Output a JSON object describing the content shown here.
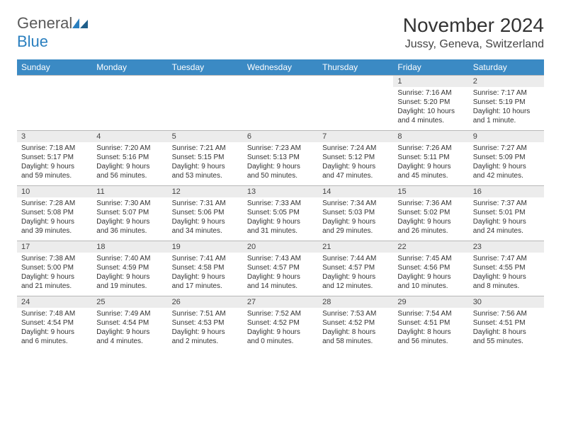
{
  "logo": {
    "word1": "General",
    "word2": "Blue"
  },
  "title": "November 2024",
  "location": "Jussy, Geneva, Switzerland",
  "colors": {
    "header_bg": "#3b8ac4",
    "header_text": "#ffffff",
    "daynum_bg": "#ececec",
    "cell_border": "#b8b8b8",
    "body_text": "#333333",
    "logo_gray": "#5a5a5a",
    "logo_blue": "#2a7fbf"
  },
  "weekdays": [
    "Sunday",
    "Monday",
    "Tuesday",
    "Wednesday",
    "Thursday",
    "Friday",
    "Saturday"
  ],
  "weeks": [
    [
      {
        "empty": true
      },
      {
        "empty": true
      },
      {
        "empty": true
      },
      {
        "empty": true
      },
      {
        "empty": true
      },
      {
        "day": "1",
        "sunrise": "Sunrise: 7:16 AM",
        "sunset": "Sunset: 5:20 PM",
        "daylight": "Daylight: 10 hours and 4 minutes."
      },
      {
        "day": "2",
        "sunrise": "Sunrise: 7:17 AM",
        "sunset": "Sunset: 5:19 PM",
        "daylight": "Daylight: 10 hours and 1 minute."
      }
    ],
    [
      {
        "day": "3",
        "sunrise": "Sunrise: 7:18 AM",
        "sunset": "Sunset: 5:17 PM",
        "daylight": "Daylight: 9 hours and 59 minutes."
      },
      {
        "day": "4",
        "sunrise": "Sunrise: 7:20 AM",
        "sunset": "Sunset: 5:16 PM",
        "daylight": "Daylight: 9 hours and 56 minutes."
      },
      {
        "day": "5",
        "sunrise": "Sunrise: 7:21 AM",
        "sunset": "Sunset: 5:15 PM",
        "daylight": "Daylight: 9 hours and 53 minutes."
      },
      {
        "day": "6",
        "sunrise": "Sunrise: 7:23 AM",
        "sunset": "Sunset: 5:13 PM",
        "daylight": "Daylight: 9 hours and 50 minutes."
      },
      {
        "day": "7",
        "sunrise": "Sunrise: 7:24 AM",
        "sunset": "Sunset: 5:12 PM",
        "daylight": "Daylight: 9 hours and 47 minutes."
      },
      {
        "day": "8",
        "sunrise": "Sunrise: 7:26 AM",
        "sunset": "Sunset: 5:11 PM",
        "daylight": "Daylight: 9 hours and 45 minutes."
      },
      {
        "day": "9",
        "sunrise": "Sunrise: 7:27 AM",
        "sunset": "Sunset: 5:09 PM",
        "daylight": "Daylight: 9 hours and 42 minutes."
      }
    ],
    [
      {
        "day": "10",
        "sunrise": "Sunrise: 7:28 AM",
        "sunset": "Sunset: 5:08 PM",
        "daylight": "Daylight: 9 hours and 39 minutes."
      },
      {
        "day": "11",
        "sunrise": "Sunrise: 7:30 AM",
        "sunset": "Sunset: 5:07 PM",
        "daylight": "Daylight: 9 hours and 36 minutes."
      },
      {
        "day": "12",
        "sunrise": "Sunrise: 7:31 AM",
        "sunset": "Sunset: 5:06 PM",
        "daylight": "Daylight: 9 hours and 34 minutes."
      },
      {
        "day": "13",
        "sunrise": "Sunrise: 7:33 AM",
        "sunset": "Sunset: 5:05 PM",
        "daylight": "Daylight: 9 hours and 31 minutes."
      },
      {
        "day": "14",
        "sunrise": "Sunrise: 7:34 AM",
        "sunset": "Sunset: 5:03 PM",
        "daylight": "Daylight: 9 hours and 29 minutes."
      },
      {
        "day": "15",
        "sunrise": "Sunrise: 7:36 AM",
        "sunset": "Sunset: 5:02 PM",
        "daylight": "Daylight: 9 hours and 26 minutes."
      },
      {
        "day": "16",
        "sunrise": "Sunrise: 7:37 AM",
        "sunset": "Sunset: 5:01 PM",
        "daylight": "Daylight: 9 hours and 24 minutes."
      }
    ],
    [
      {
        "day": "17",
        "sunrise": "Sunrise: 7:38 AM",
        "sunset": "Sunset: 5:00 PM",
        "daylight": "Daylight: 9 hours and 21 minutes."
      },
      {
        "day": "18",
        "sunrise": "Sunrise: 7:40 AM",
        "sunset": "Sunset: 4:59 PM",
        "daylight": "Daylight: 9 hours and 19 minutes."
      },
      {
        "day": "19",
        "sunrise": "Sunrise: 7:41 AM",
        "sunset": "Sunset: 4:58 PM",
        "daylight": "Daylight: 9 hours and 17 minutes."
      },
      {
        "day": "20",
        "sunrise": "Sunrise: 7:43 AM",
        "sunset": "Sunset: 4:57 PM",
        "daylight": "Daylight: 9 hours and 14 minutes."
      },
      {
        "day": "21",
        "sunrise": "Sunrise: 7:44 AM",
        "sunset": "Sunset: 4:57 PM",
        "daylight": "Daylight: 9 hours and 12 minutes."
      },
      {
        "day": "22",
        "sunrise": "Sunrise: 7:45 AM",
        "sunset": "Sunset: 4:56 PM",
        "daylight": "Daylight: 9 hours and 10 minutes."
      },
      {
        "day": "23",
        "sunrise": "Sunrise: 7:47 AM",
        "sunset": "Sunset: 4:55 PM",
        "daylight": "Daylight: 9 hours and 8 minutes."
      }
    ],
    [
      {
        "day": "24",
        "sunrise": "Sunrise: 7:48 AM",
        "sunset": "Sunset: 4:54 PM",
        "daylight": "Daylight: 9 hours and 6 minutes."
      },
      {
        "day": "25",
        "sunrise": "Sunrise: 7:49 AM",
        "sunset": "Sunset: 4:54 PM",
        "daylight": "Daylight: 9 hours and 4 minutes."
      },
      {
        "day": "26",
        "sunrise": "Sunrise: 7:51 AM",
        "sunset": "Sunset: 4:53 PM",
        "daylight": "Daylight: 9 hours and 2 minutes."
      },
      {
        "day": "27",
        "sunrise": "Sunrise: 7:52 AM",
        "sunset": "Sunset: 4:52 PM",
        "daylight": "Daylight: 9 hours and 0 minutes."
      },
      {
        "day": "28",
        "sunrise": "Sunrise: 7:53 AM",
        "sunset": "Sunset: 4:52 PM",
        "daylight": "Daylight: 8 hours and 58 minutes."
      },
      {
        "day": "29",
        "sunrise": "Sunrise: 7:54 AM",
        "sunset": "Sunset: 4:51 PM",
        "daylight": "Daylight: 8 hours and 56 minutes."
      },
      {
        "day": "30",
        "sunrise": "Sunrise: 7:56 AM",
        "sunset": "Sunset: 4:51 PM",
        "daylight": "Daylight: 8 hours and 55 minutes."
      }
    ]
  ]
}
